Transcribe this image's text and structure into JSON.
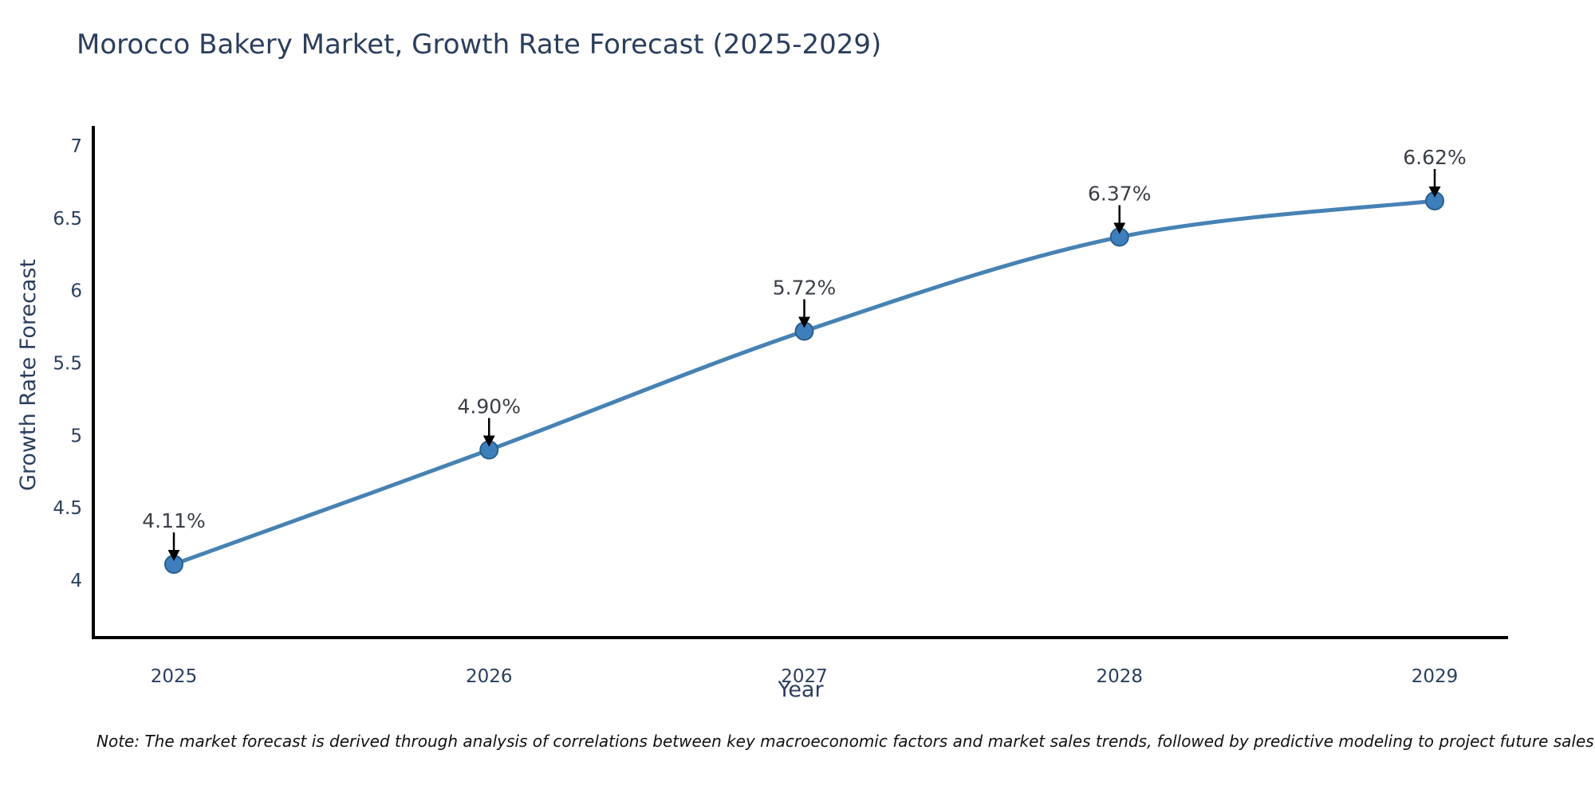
{
  "title": "Morocco Bakery Market, Growth Rate Forecast (2025-2029)",
  "note": {
    "text": "Note: The market forecast is derived through analysis of correlations between key macroeconomic factors and market sales trends, followed by predictive modeling to project future sales"
  },
  "chart_data": {
    "type": "line",
    "title": "Morocco Bakery Market, Growth Rate Forecast (2025-2029)",
    "xlabel": "Year",
    "ylabel": "Growth Rate Forecast",
    "categories": [
      "2025",
      "2026",
      "2027",
      "2028",
      "2029"
    ],
    "values": [
      4.11,
      4.9,
      5.72,
      6.37,
      6.62
    ],
    "point_labels": [
      "4.11%",
      "4.90%",
      "5.72%",
      "6.37%",
      "6.62%"
    ],
    "yticks": [
      4,
      4.5,
      5,
      5.5,
      6,
      6.5,
      7
    ],
    "ylim": [
      3.6,
      7.13
    ],
    "grid": false,
    "legend": "none",
    "marker_annotations": "down-arrow",
    "colors": {
      "line": "#4682b4",
      "marker_fill": "#3d7ebd",
      "marker_edge": "#2a5f8f",
      "axis": "#000000",
      "tick_text": "#2a3f5f",
      "annotation_text": "#3a3f47",
      "arrow": "#000000",
      "title_text": "#2a3f5f"
    }
  }
}
